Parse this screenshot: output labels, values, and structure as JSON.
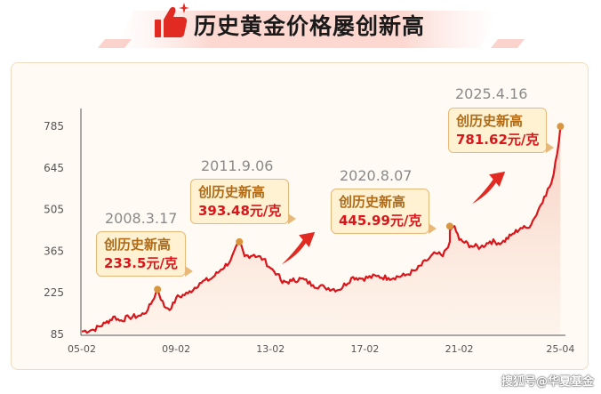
{
  "header": {
    "title": "历史黄金价格屡创新高",
    "icon": "thumbs-up-icon"
  },
  "colors": {
    "accent_red": "#d8161b",
    "callout_bg": "#fff2d3",
    "callout_border": "#e8b879",
    "callout_text": "#b06a16",
    "marker": "#d9963f",
    "arrow": "#e02a22"
  },
  "chart_data": {
    "type": "line",
    "title": "历史黄金价格屡创新高",
    "xlabel": "",
    "ylabel": "",
    "x_ticks": [
      "05-02",
      "09-02",
      "13-02",
      "17-02",
      "21-02",
      "25-04"
    ],
    "y_ticks": [
      85,
      225,
      365,
      505,
      645,
      785
    ],
    "ylim": [
      85,
      800
    ],
    "grid": false,
    "series": [
      {
        "x": [
          2005.0,
          2005.5,
          2006.0,
          2006.4,
          2006.6,
          2007.0,
          2007.5,
          2007.8,
          2008.0,
          2008.21,
          2008.5,
          2008.8,
          2009.0,
          2009.5,
          2010.0,
          2010.5,
          2010.9,
          2011.3,
          2011.68,
          2011.9,
          2012.3,
          2012.7,
          2013.0,
          2013.3,
          2013.5,
          2013.9,
          2014.3,
          2014.8,
          2015.3,
          2015.9,
          2016.5,
          2016.9,
          2017.5,
          2018.0,
          2018.7,
          2019.2,
          2019.6,
          2020.0,
          2020.3,
          2020.6,
          2020.6,
          2020.8,
          2021.0,
          2021.5,
          2021.9,
          2022.3,
          2022.8,
          2023.2,
          2023.6,
          2023.9,
          2024.2,
          2024.6,
          2024.9,
          2025.0,
          2025.15,
          2025.29
        ],
        "y": [
          92,
          98,
          120,
          142,
          128,
          140,
          145,
          165,
          195,
          233.5,
          175,
          170,
          205,
          220,
          255,
          270,
          300,
          330,
          393.48,
          345,
          350,
          335,
          305,
          285,
          255,
          262,
          270,
          248,
          240,
          232,
          275,
          270,
          278,
          272,
          280,
          300,
          330,
          355,
          345,
          395,
          432,
          445.99,
          400,
          380,
          375,
          395,
          390,
          415,
          440,
          440,
          475,
          545,
          590,
          620,
          690,
          781.62
        ]
      }
    ],
    "annotations": [
      {
        "date": "2008.3.17",
        "title": "创历史新高",
        "price": "233.5元/克",
        "x": 2008.21,
        "y": 233.5
      },
      {
        "date": "2011.9.06",
        "title": "创历史新高",
        "price": "393.48元/克",
        "x": 2011.68,
        "y": 393.48
      },
      {
        "date": "2020.8.07",
        "title": "创历史新高",
        "price": "445.99元/克",
        "x": 2020.6,
        "y": 445.99
      },
      {
        "date": "2025.4.16",
        "title": "创历史新高",
        "price": "781.62元/克",
        "x": 2025.29,
        "y": 781.62
      }
    ]
  },
  "watermark": "搜狐号@华夏基金"
}
